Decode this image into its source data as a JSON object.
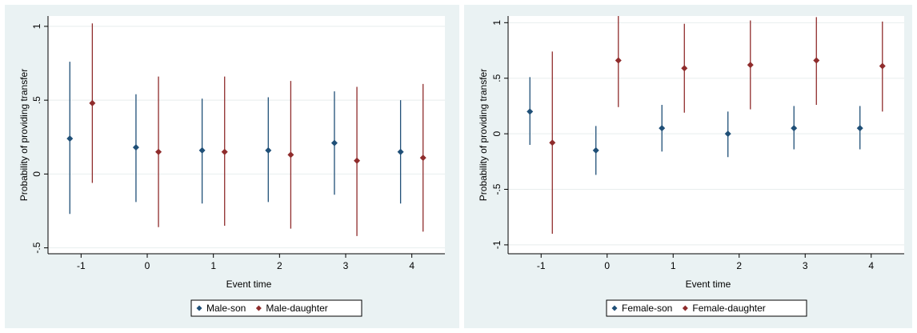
{
  "chart_data": [
    {
      "type": "scatter",
      "xlabel": "Event time",
      "ylabel": "Probability of providing transfer",
      "xticks": [
        "-1",
        "0",
        "1",
        "2",
        "3",
        "4"
      ],
      "yticks": [
        "-.5",
        "0",
        ".5",
        "1"
      ],
      "xlim": [
        -1.5,
        4.5
      ],
      "ylim": [
        -0.54,
        1.07
      ],
      "grid": true,
      "legend_position": "bottom",
      "series": [
        {
          "name": "Male-son",
          "color": "#1f4f77",
          "x": [
            -1,
            0,
            1,
            2,
            3,
            4
          ],
          "y": [
            0.24,
            0.18,
            0.16,
            0.16,
            0.21,
            0.15
          ],
          "lower": [
            -0.27,
            -0.19,
            -0.2,
            -0.19,
            -0.14,
            -0.2
          ],
          "upper": [
            0.76,
            0.54,
            0.51,
            0.52,
            0.56,
            0.5
          ]
        },
        {
          "name": "Male-daughter",
          "color": "#8f2c2c",
          "x": [
            -1,
            0,
            1,
            2,
            3,
            4
          ],
          "y": [
            0.48,
            0.15,
            0.15,
            0.13,
            0.09,
            0.11
          ],
          "lower": [
            -0.06,
            -0.36,
            -0.35,
            -0.37,
            -0.42,
            -0.39
          ],
          "upper": [
            1.02,
            0.66,
            0.66,
            0.63,
            0.59,
            0.61
          ]
        }
      ]
    },
    {
      "type": "scatter",
      "xlabel": "Event time",
      "ylabel": "Probability of providing transfer",
      "xticks": [
        "-1",
        "0",
        "1",
        "2",
        "3",
        "4"
      ],
      "yticks": [
        "-1",
        "-.5",
        "0",
        ".5",
        "1"
      ],
      "xlim": [
        -1.5,
        4.5
      ],
      "ylim": [
        -1.08,
        1.06
      ],
      "grid": true,
      "legend_position": "bottom",
      "series": [
        {
          "name": "Female-son",
          "color": "#1f4f77",
          "x": [
            -1,
            0,
            1,
            2,
            3,
            4
          ],
          "y": [
            0.2,
            -0.15,
            0.05,
            0.0,
            0.05,
            0.05
          ],
          "lower": [
            -0.1,
            -0.37,
            -0.16,
            -0.21,
            -0.14,
            -0.14
          ],
          "upper": [
            0.51,
            0.07,
            0.26,
            0.2,
            0.25,
            0.25
          ]
        },
        {
          "name": "Female-daughter",
          "color": "#8f2c2c",
          "x": [
            -1,
            0,
            1,
            2,
            3,
            4
          ],
          "y": [
            -0.08,
            0.66,
            0.59,
            0.62,
            0.66,
            0.61
          ],
          "lower": [
            -0.9,
            0.24,
            0.19,
            0.22,
            0.26,
            0.2
          ],
          "upper": [
            0.74,
            1.06,
            0.99,
            1.02,
            1.05,
            1.01
          ]
        }
      ]
    }
  ]
}
